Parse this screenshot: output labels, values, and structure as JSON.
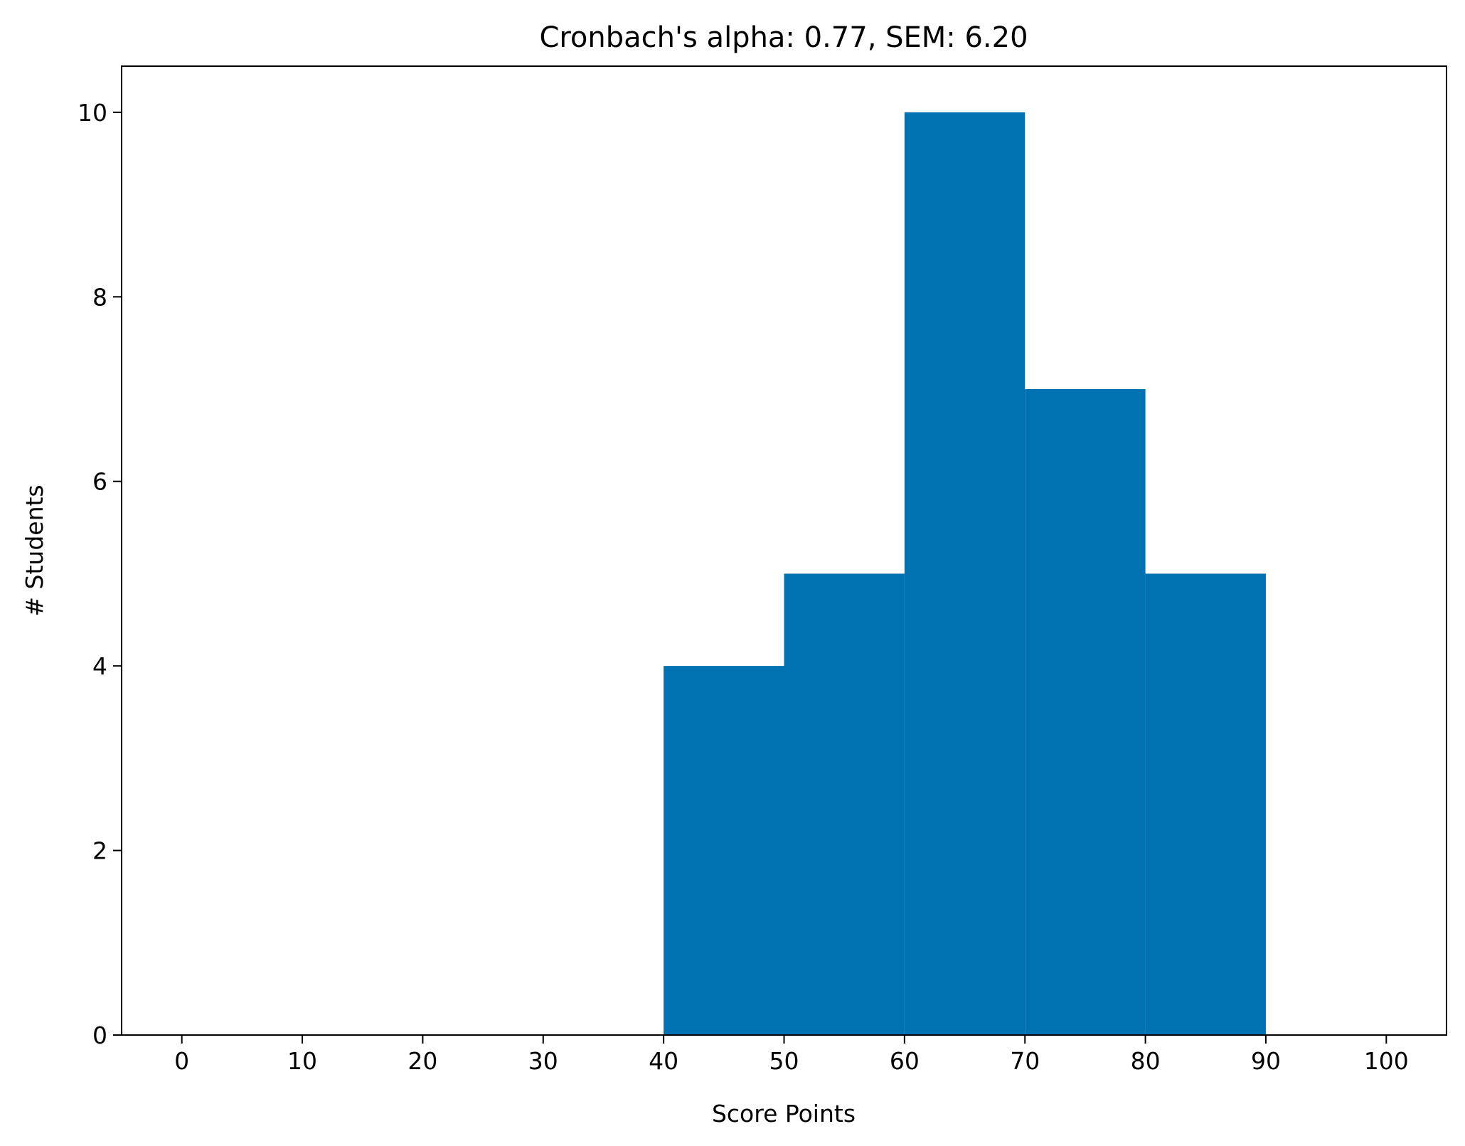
{
  "chart_data": {
    "type": "bar",
    "histogram": true,
    "title": "Cronbach's alpha: 0.77, SEM: 6.20",
    "xlabel": "Score Points",
    "ylabel": "# Students",
    "bins": [
      {
        "start": 40,
        "end": 50,
        "count": 4
      },
      {
        "start": 50,
        "end": 60,
        "count": 5
      },
      {
        "start": 60,
        "end": 70,
        "count": 10
      },
      {
        "start": 70,
        "end": 80,
        "count": 7
      },
      {
        "start": 80,
        "end": 90,
        "count": 5
      }
    ],
    "xlim": [
      -5,
      105
    ],
    "ylim": [
      0,
      10.5
    ],
    "xticks": [
      0,
      10,
      20,
      30,
      40,
      50,
      60,
      70,
      80,
      90,
      100
    ],
    "yticks": [
      0,
      2,
      4,
      6,
      8,
      10
    ],
    "grid": false,
    "legend": "none",
    "bar_color": "#0071b1"
  }
}
